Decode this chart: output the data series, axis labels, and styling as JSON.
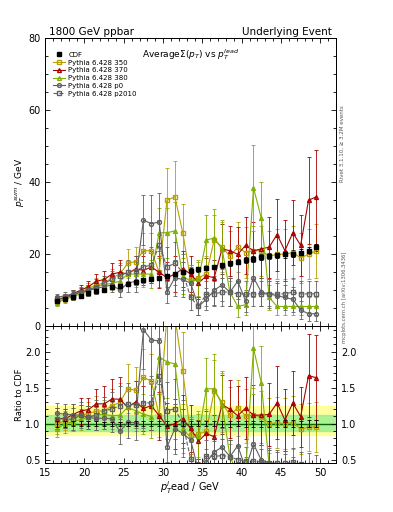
{
  "title_left": "1800 GeV ppbar",
  "title_right": "Underlying Event",
  "plot_title": "Average$\\Sigma(p_T)$ vs $p_T^{lead}$",
  "ylabel_main": "$p_T^{sum}$ / GeV",
  "ylabel_ratio": "Ratio to CDF",
  "xlabel": "$p_T^{l}$ead / GeV",
  "xlim": [
    15.0,
    52.0
  ],
  "ylim_main": [
    0,
    80
  ],
  "ylim_ratio": [
    0.45,
    2.35
  ],
  "yticks_main": [
    0,
    20,
    40,
    60,
    80
  ],
  "yticks_ratio": [
    0.5,
    1.0,
    1.5,
    2.0
  ],
  "cdf_x": [
    16.5,
    17.5,
    18.5,
    19.5,
    20.5,
    21.5,
    22.5,
    23.5,
    24.5,
    25.5,
    26.5,
    27.5,
    28.5,
    29.5,
    30.5,
    31.5,
    32.5,
    33.5,
    34.5,
    35.5,
    36.5,
    37.5,
    38.5,
    39.5,
    40.5,
    41.5,
    42.5,
    43.5,
    44.5,
    45.5,
    46.5,
    47.5,
    48.5,
    49.5
  ],
  "cdf_y": [
    7.0,
    7.5,
    8.0,
    8.5,
    9.2,
    9.8,
    10.2,
    10.8,
    11.2,
    11.8,
    12.3,
    12.8,
    13.2,
    13.5,
    14.0,
    14.5,
    15.0,
    15.5,
    15.8,
    16.2,
    16.5,
    17.0,
    17.5,
    18.0,
    18.5,
    18.8,
    19.2,
    19.5,
    19.8,
    20.0,
    20.2,
    20.5,
    21.0,
    22.0
  ],
  "cdf_yerr": [
    0.3,
    0.3,
    0.3,
    0.3,
    0.3,
    0.3,
    0.3,
    0.3,
    0.3,
    0.3,
    0.4,
    0.4,
    0.4,
    0.5,
    0.5,
    0.5,
    0.5,
    0.6,
    0.6,
    0.6,
    0.6,
    0.7,
    0.7,
    0.7,
    0.8,
    0.8,
    0.8,
    0.8,
    0.9,
    0.9,
    0.9,
    0.9,
    1.0,
    1.0
  ],
  "p350_x": [
    16.5,
    17.5,
    18.5,
    19.5,
    20.5,
    21.5,
    22.5,
    23.5,
    24.5,
    25.5,
    26.5,
    27.5,
    28.5,
    29.5,
    30.5,
    31.5,
    32.5,
    33.5,
    34.5,
    35.5,
    36.5,
    37.5,
    38.5,
    39.5,
    40.5,
    41.5,
    42.5,
    43.5,
    44.5,
    45.5,
    46.5,
    47.5,
    48.5,
    49.5
  ],
  "p350_y": [
    7.0,
    7.8,
    8.5,
    9.5,
    10.5,
    11.5,
    12.0,
    13.5,
    14.5,
    17.5,
    18.0,
    21.0,
    21.0,
    15.0,
    35.0,
    36.0,
    26.0,
    13.0,
    13.5,
    14.5,
    24.0,
    22.0,
    19.5,
    22.0,
    20.5,
    21.0,
    21.0,
    19.5,
    20.0,
    20.0,
    20.5,
    19.0,
    20.0,
    21.0
  ],
  "p350_yerr": [
    1.0,
    1.0,
    1.2,
    1.2,
    1.5,
    2.0,
    2.0,
    2.5,
    3.0,
    4.0,
    4.0,
    5.0,
    5.0,
    4.0,
    9.0,
    10.0,
    8.0,
    4.0,
    5.0,
    5.0,
    7.0,
    7.0,
    7.0,
    7.0,
    7.0,
    7.0,
    7.0,
    7.0,
    7.0,
    7.0,
    7.5,
    7.0,
    7.0,
    7.5
  ],
  "p370_x": [
    16.5,
    17.5,
    18.5,
    19.5,
    20.5,
    21.5,
    22.5,
    23.5,
    24.5,
    25.5,
    26.5,
    27.5,
    28.5,
    29.5,
    30.5,
    31.5,
    32.5,
    33.5,
    34.5,
    35.5,
    36.5,
    37.5,
    38.5,
    39.5,
    40.5,
    41.5,
    42.5,
    43.5,
    44.5,
    45.5,
    46.5,
    47.5,
    48.5,
    49.5
  ],
  "p370_y": [
    7.5,
    8.0,
    9.0,
    10.0,
    11.0,
    12.5,
    13.0,
    14.5,
    15.0,
    14.5,
    16.0,
    15.5,
    16.5,
    15.0,
    13.5,
    14.5,
    16.0,
    14.5,
    12.0,
    14.0,
    13.5,
    21.5,
    21.0,
    20.0,
    22.5,
    21.0,
    21.5,
    22.0,
    25.5,
    21.0,
    26.0,
    22.5,
    35.0,
    36.0
  ],
  "p370_yerr": [
    1.0,
    1.0,
    1.2,
    1.5,
    1.5,
    2.0,
    2.5,
    3.0,
    3.5,
    3.0,
    3.5,
    4.0,
    4.5,
    4.5,
    4.5,
    5.0,
    5.0,
    5.0,
    4.5,
    5.0,
    5.0,
    7.0,
    7.0,
    7.5,
    8.0,
    8.0,
    8.0,
    8.5,
    10.0,
    8.5,
    9.0,
    8.5,
    12.0,
    13.0
  ],
  "p380_x": [
    16.5,
    17.5,
    18.5,
    19.5,
    20.5,
    21.5,
    22.5,
    23.5,
    24.5,
    25.5,
    26.5,
    27.5,
    28.5,
    29.5,
    30.5,
    31.5,
    32.5,
    33.5,
    34.5,
    35.5,
    36.5,
    37.5,
    38.5,
    39.5,
    40.5,
    41.5,
    42.5,
    43.5,
    44.5,
    45.5,
    46.5,
    47.5,
    48.5,
    49.5
  ],
  "p380_y": [
    6.5,
    7.5,
    8.2,
    9.0,
    10.0,
    11.0,
    11.5,
    12.0,
    12.5,
    14.5,
    14.5,
    14.5,
    14.5,
    26.0,
    26.0,
    26.5,
    14.0,
    12.5,
    13.0,
    24.0,
    24.5,
    21.5,
    9.5,
    5.5,
    6.0,
    38.5,
    30.0,
    8.0,
    5.5,
    5.5,
    5.5,
    5.5,
    5.5,
    5.5
  ],
  "p380_yerr": [
    0.8,
    1.0,
    1.0,
    1.2,
    1.5,
    1.5,
    2.0,
    2.0,
    2.5,
    3.0,
    3.5,
    3.5,
    4.0,
    7.0,
    7.0,
    8.0,
    5.0,
    4.5,
    5.0,
    7.0,
    8.0,
    8.0,
    4.0,
    3.0,
    3.0,
    12.0,
    10.0,
    3.5,
    2.5,
    2.5,
    2.5,
    2.5,
    2.5,
    2.5
  ],
  "pp0_x": [
    16.5,
    17.5,
    18.5,
    19.5,
    20.5,
    21.5,
    22.5,
    23.5,
    24.5,
    25.5,
    26.5,
    27.5,
    28.5,
    29.5,
    30.5,
    31.5,
    32.5,
    33.5,
    34.5,
    35.5,
    36.5,
    37.5,
    38.5,
    39.5,
    40.5,
    41.5,
    42.5,
    43.5,
    44.5,
    45.5,
    46.5,
    47.5,
    48.5,
    49.5
  ],
  "pp0_y": [
    8.0,
    8.5,
    9.0,
    9.5,
    10.0,
    10.5,
    11.0,
    11.5,
    10.0,
    12.0,
    12.5,
    29.5,
    28.5,
    29.0,
    9.5,
    13.5,
    13.0,
    12.0,
    5.5,
    7.5,
    10.0,
    11.5,
    9.5,
    12.5,
    7.0,
    13.5,
    9.5,
    9.0,
    8.5,
    8.0,
    7.5,
    4.5,
    3.5,
    3.5
  ],
  "pp0_yerr": [
    1.0,
    1.0,
    1.2,
    1.2,
    1.5,
    1.5,
    1.5,
    2.0,
    2.0,
    2.5,
    3.0,
    7.0,
    8.0,
    8.0,
    3.0,
    5.0,
    5.0,
    4.5,
    2.5,
    3.0,
    4.0,
    4.5,
    4.0,
    5.0,
    3.0,
    5.5,
    4.0,
    4.0,
    3.5,
    3.5,
    3.5,
    2.5,
    2.0,
    2.0
  ],
  "pp2010_x": [
    16.5,
    17.5,
    18.5,
    19.5,
    20.5,
    21.5,
    22.5,
    23.5,
    24.5,
    25.5,
    26.5,
    27.5,
    28.5,
    29.5,
    30.5,
    31.5,
    32.5,
    33.5,
    34.5,
    35.5,
    36.5,
    37.5,
    38.5,
    39.5,
    40.5,
    41.5,
    42.5,
    43.5,
    44.5,
    45.5,
    46.5,
    47.5,
    48.5,
    49.5
  ],
  "pp2010_y": [
    7.5,
    8.0,
    8.5,
    9.5,
    10.0,
    11.0,
    12.0,
    13.0,
    14.0,
    15.0,
    15.5,
    16.5,
    17.0,
    22.5,
    16.5,
    17.5,
    15.0,
    8.0,
    5.5,
    9.0,
    9.0,
    9.5,
    9.5,
    9.0,
    9.0,
    9.0,
    9.0,
    9.0,
    9.0,
    9.0,
    9.5,
    9.0,
    9.0,
    9.0
  ],
  "pp2010_yerr": [
    1.0,
    1.0,
    1.2,
    1.5,
    1.5,
    2.0,
    2.0,
    2.5,
    3.0,
    3.5,
    4.0,
    4.5,
    5.0,
    7.0,
    5.5,
    6.0,
    5.0,
    3.5,
    2.5,
    3.5,
    3.5,
    4.0,
    4.0,
    3.5,
    3.5,
    3.5,
    3.5,
    3.5,
    3.5,
    3.5,
    4.0,
    3.5,
    3.5,
    3.5
  ],
  "col_350": "#b8a000",
  "col_370": "#aa0000",
  "col_380": "#80b000",
  "col_pp0": "#606060",
  "col_pp2010": "#606060"
}
